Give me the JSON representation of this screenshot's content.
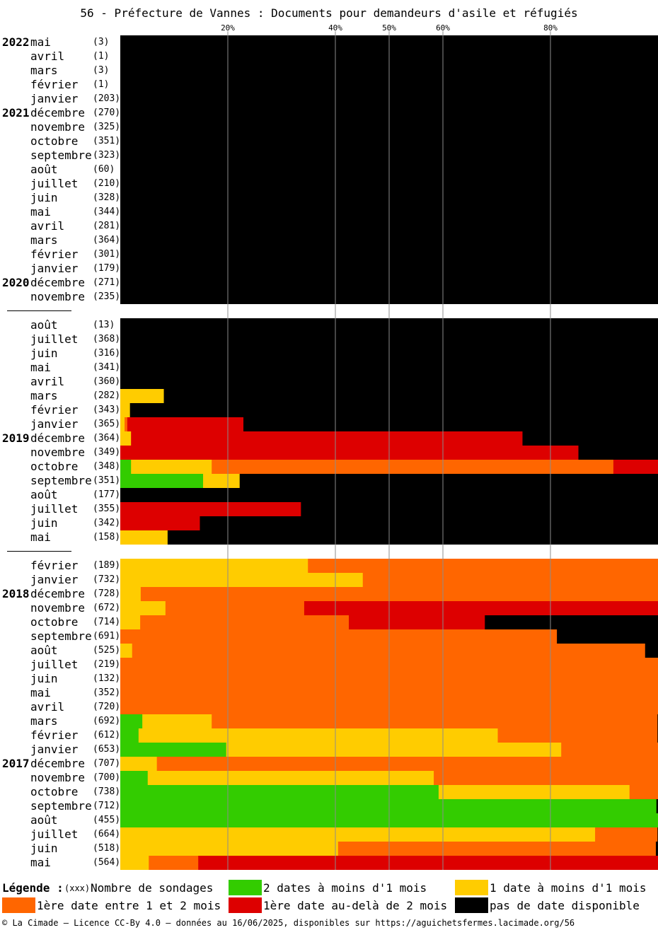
{
  "title": "56 - Préfecture de Vannes : Documents pour demandeurs d'asile et réfugiés",
  "footer": "© La Cimade — Licence CC-By 4.0 — données au 16/06/2025, disponibles sur https://aguichetsfermes.lacimade.org/56",
  "legend": {
    "title": "Légende :",
    "count_key": "(xxx)",
    "count_label": "Nombre de sondages",
    "items": [
      {
        "key": "g",
        "label": "2 dates à moins d'1 mois",
        "color": "#33cc00"
      },
      {
        "key": "y",
        "label": "1 date à moins d'1 mois",
        "color": "#ffcc00"
      },
      {
        "key": "o",
        "label": "1ère date entre 1 et 2 mois",
        "color": "#ff6600"
      },
      {
        "key": "r",
        "label": "1ère date au-delà de 2 mois",
        "color": "#dd0000"
      },
      {
        "key": "b",
        "label": "pas de date disponible",
        "color": "#000000"
      }
    ]
  },
  "chart_data": {
    "type": "bar",
    "orientation": "horizontal",
    "stacked": "100%",
    "x_ticks": [
      "20%",
      "40%",
      "50%",
      "60%",
      "80%"
    ],
    "x_tick_values": [
      20,
      40,
      50,
      60,
      80
    ],
    "xlim": [
      0,
      100
    ],
    "series_order": [
      "g",
      "y",
      "o",
      "r",
      "b"
    ],
    "groups": [
      {
        "rows": [
          {
            "year": "2022",
            "month": "mai",
            "count": "(3)",
            "g": 0,
            "y": 0,
            "o": 0,
            "r": 0,
            "b": 100
          },
          {
            "year": "",
            "month": "avril",
            "count": "(1)",
            "g": 0,
            "y": 0,
            "o": 0,
            "r": 0,
            "b": 100
          },
          {
            "year": "",
            "month": "mars",
            "count": "(3)",
            "g": 0,
            "y": 0,
            "o": 0,
            "r": 0,
            "b": 100
          },
          {
            "year": "",
            "month": "février",
            "count": "(1)",
            "g": 0,
            "y": 0,
            "o": 0,
            "r": 0,
            "b": 100
          },
          {
            "year": "",
            "month": "janvier",
            "count": "(203)",
            "g": 0,
            "y": 0,
            "o": 0,
            "r": 0,
            "b": 100
          },
          {
            "year": "2021",
            "month": "décembre",
            "count": "(270)",
            "g": 0,
            "y": 0,
            "o": 0,
            "r": 0,
            "b": 100
          },
          {
            "year": "",
            "month": "novembre",
            "count": "(325)",
            "g": 0,
            "y": 0,
            "o": 0,
            "r": 0,
            "b": 100
          },
          {
            "year": "",
            "month": "octobre",
            "count": "(351)",
            "g": 0,
            "y": 0,
            "o": 0,
            "r": 0,
            "b": 100
          },
          {
            "year": "",
            "month": "septembre",
            "count": "(323)",
            "g": 0,
            "y": 0,
            "o": 0,
            "r": 0,
            "b": 100
          },
          {
            "year": "",
            "month": "août",
            "count": "(60)",
            "g": 0,
            "y": 0,
            "o": 0,
            "r": 0,
            "b": 100
          },
          {
            "year": "",
            "month": "juillet",
            "count": "(210)",
            "g": 0,
            "y": 0,
            "o": 0,
            "r": 0,
            "b": 100
          },
          {
            "year": "",
            "month": "juin",
            "count": "(328)",
            "g": 0,
            "y": 0,
            "o": 0,
            "r": 0,
            "b": 100
          },
          {
            "year": "",
            "month": "mai",
            "count": "(344)",
            "g": 0,
            "y": 0,
            "o": 0,
            "r": 0,
            "b": 100
          },
          {
            "year": "",
            "month": "avril",
            "count": "(281)",
            "g": 0,
            "y": 0,
            "o": 0,
            "r": 0,
            "b": 100
          },
          {
            "year": "",
            "month": "mars",
            "count": "(364)",
            "g": 0,
            "y": 0,
            "o": 0,
            "r": 0,
            "b": 100
          },
          {
            "year": "",
            "month": "février",
            "count": "(301)",
            "g": 0,
            "y": 0,
            "o": 0,
            "r": 0,
            "b": 100
          },
          {
            "year": "",
            "month": "janvier",
            "count": "(179)",
            "g": 0,
            "y": 0,
            "o": 0,
            "r": 0,
            "b": 100
          },
          {
            "year": "2020",
            "month": "décembre",
            "count": "(271)",
            "g": 0,
            "y": 0,
            "o": 0,
            "r": 0,
            "b": 100
          },
          {
            "year": "",
            "month": "novembre",
            "count": "(235)",
            "g": 0,
            "y": 0,
            "o": 0,
            "r": 0,
            "b": 100
          }
        ]
      },
      {
        "rows": [
          {
            "year": "",
            "month": "août",
            "count": "(13)",
            "g": 0,
            "y": 0,
            "o": 0,
            "r": 0,
            "b": 100
          },
          {
            "year": "",
            "month": "juillet",
            "count": "(368)",
            "g": 0,
            "y": 0,
            "o": 0,
            "r": 0,
            "b": 100
          },
          {
            "year": "",
            "month": "juin",
            "count": "(316)",
            "g": 0,
            "y": 0,
            "o": 0,
            "r": 0,
            "b": 100
          },
          {
            "year": "",
            "month": "mai",
            "count": "(341)",
            "g": 0,
            "y": 0,
            "o": 0,
            "r": 0,
            "b": 100
          },
          {
            "year": "",
            "month": "avril",
            "count": "(360)",
            "g": 0,
            "y": 0,
            "o": 0,
            "r": 0,
            "b": 100
          },
          {
            "year": "",
            "month": "mars",
            "count": "(282)",
            "g": 0,
            "y": 8.1,
            "o": 0,
            "r": 0,
            "b": 91.9
          },
          {
            "year": "",
            "month": "février",
            "count": "(343)",
            "g": 0,
            "y": 1.8,
            "o": 0,
            "r": 0,
            "b": 98.2
          },
          {
            "year": "",
            "month": "janvier",
            "count": "(365)",
            "g": 0,
            "y": 0.8,
            "o": 0.5,
            "r": 21.6,
            "b": 77.1
          },
          {
            "year": "2019",
            "month": "décembre",
            "count": "(364)",
            "g": 0,
            "y": 2.0,
            "o": 0,
            "r": 72.8,
            "b": 25.2
          },
          {
            "year": "",
            "month": "novembre",
            "count": "(349)",
            "g": 0,
            "y": 0,
            "o": 0,
            "r": 85.2,
            "b": 14.8
          },
          {
            "year": "",
            "month": "octobre",
            "count": "(348)",
            "g": 2.0,
            "y": 15.0,
            "o": 74.7,
            "r": 8.3,
            "b": 0
          },
          {
            "year": "",
            "month": "septembre",
            "count": "(351)",
            "g": 15.4,
            "y": 6.8,
            "o": 0,
            "r": 0,
            "b": 77.8
          },
          {
            "year": "",
            "month": "août",
            "count": "(177)",
            "g": 0,
            "y": 0,
            "o": 0,
            "r": 0,
            "b": 100
          },
          {
            "year": "",
            "month": "juillet",
            "count": "(355)",
            "g": 0,
            "y": 0,
            "o": 0,
            "r": 33.6,
            "b": 66.4
          },
          {
            "year": "",
            "month": "juin",
            "count": "(342)",
            "g": 0,
            "y": 0,
            "o": 0,
            "r": 14.8,
            "b": 85.2
          },
          {
            "year": "",
            "month": "mai",
            "count": "(158)",
            "g": 0,
            "y": 8.8,
            "o": 0,
            "r": 0,
            "b": 91.2
          }
        ]
      },
      {
        "rows": [
          {
            "year": "",
            "month": "février",
            "count": "(189)",
            "g": 0,
            "y": 34.9,
            "o": 65.1,
            "r": 0,
            "b": 0
          },
          {
            "year": "",
            "month": "janvier",
            "count": "(732)",
            "g": 0,
            "y": 45.1,
            "o": 54.9,
            "r": 0,
            "b": 0
          },
          {
            "year": "2018",
            "month": "décembre",
            "count": "(728)",
            "g": 0,
            "y": 3.8,
            "o": 96.2,
            "r": 0,
            "b": 0
          },
          {
            "year": "",
            "month": "novembre",
            "count": "(672)",
            "g": 0,
            "y": 8.4,
            "o": 25.8,
            "r": 65.8,
            "b": 0
          },
          {
            "year": "",
            "month": "octobre",
            "count": "(714)",
            "g": 0,
            "y": 3.7,
            "o": 38.8,
            "r": 25.3,
            "b": 32.2
          },
          {
            "year": "",
            "month": "septembre",
            "count": "(691)",
            "g": 0,
            "y": 0,
            "o": 81.2,
            "r": 0,
            "b": 18.8
          },
          {
            "year": "",
            "month": "août",
            "count": "(525)",
            "g": 0,
            "y": 2.2,
            "o": 95.4,
            "r": 0,
            "b": 2.4
          },
          {
            "year": "",
            "month": "juillet",
            "count": "(219)",
            "g": 0,
            "y": 0,
            "o": 100,
            "r": 0,
            "b": 0
          },
          {
            "year": "",
            "month": "juin",
            "count": "(132)",
            "g": 0,
            "y": 0,
            "o": 100,
            "r": 0,
            "b": 0
          },
          {
            "year": "",
            "month": "mai",
            "count": "(352)",
            "g": 0,
            "y": 0,
            "o": 100,
            "r": 0,
            "b": 0
          },
          {
            "year": "",
            "month": "avril",
            "count": "(720)",
            "g": 0,
            "y": 0,
            "o": 100,
            "r": 0,
            "b": 0
          },
          {
            "year": "",
            "month": "mars",
            "count": "(692)",
            "g": 4.1,
            "y": 12.9,
            "o": 82.9,
            "r": 0,
            "b": 0.1
          },
          {
            "year": "",
            "month": "février",
            "count": "(612)",
            "g": 3.4,
            "y": 66.8,
            "o": 29.7,
            "r": 0,
            "b": 0.1
          },
          {
            "year": "",
            "month": "janvier",
            "count": "(653)",
            "g": 19.7,
            "y": 62.3,
            "o": 18.0,
            "r": 0,
            "b": 0
          },
          {
            "year": "2017",
            "month": "décembre",
            "count": "(707)",
            "g": 0,
            "y": 6.8,
            "o": 93.2,
            "r": 0,
            "b": 0
          },
          {
            "year": "",
            "month": "novembre",
            "count": "(700)",
            "g": 5.1,
            "y": 53.2,
            "o": 41.7,
            "r": 0,
            "b": 0
          },
          {
            "year": "",
            "month": "octobre",
            "count": "(738)",
            "g": 59.2,
            "y": 35.5,
            "o": 5.3,
            "r": 0,
            "b": 0
          },
          {
            "year": "",
            "month": "septembre",
            "count": "(712)",
            "g": 99.7,
            "y": 0,
            "o": 0,
            "r": 0,
            "b": 0.3
          },
          {
            "year": "",
            "month": "août",
            "count": "(455)",
            "g": 100,
            "y": 0,
            "o": 0,
            "r": 0,
            "b": 0
          },
          {
            "year": "",
            "month": "juillet",
            "count": "(664)",
            "g": 0,
            "y": 88.3,
            "o": 11.6,
            "r": 0,
            "b": 0.1
          },
          {
            "year": "",
            "month": "juin",
            "count": "(518)",
            "g": 0,
            "y": 40.5,
            "o": 59.1,
            "r": 0,
            "b": 0.4
          },
          {
            "year": "",
            "month": "mai",
            "count": "(564)",
            "g": 0,
            "y": 5.3,
            "o": 9.2,
            "r": 85.5,
            "b": 0
          }
        ]
      }
    ]
  }
}
